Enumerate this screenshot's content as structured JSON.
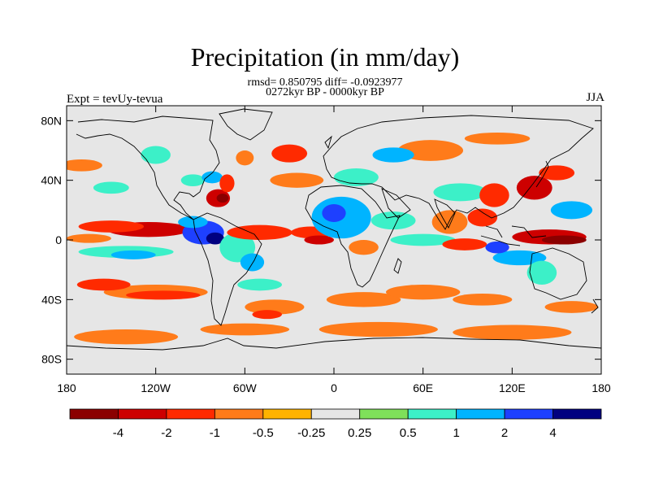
{
  "title": "Precipitation (in mm/day)",
  "stats_line": "rmsd= 0.850795 diff= -0.0923977",
  "period_line": "0272kyr BP - 0000kyr BP",
  "experiment_label": "Expt = tevUy-tevua",
  "season_label": "JJA",
  "chart_data": {
    "type": "heatmap",
    "title": "Precipitation (in mm/day)",
    "x_axis": {
      "range": [
        -180,
        180
      ],
      "ticks": [
        -180,
        -120,
        -60,
        0,
        60,
        120,
        180
      ],
      "tick_labels": [
        "180",
        "120W",
        "60W",
        "0",
        "60E",
        "120E",
        "180"
      ]
    },
    "y_axis": {
      "range": [
        -90,
        90
      ],
      "ticks": [
        80,
        40,
        0,
        -40,
        -80
      ],
      "tick_labels": [
        "80N",
        "40N",
        "0",
        "40S",
        "80S"
      ]
    },
    "colorbar": {
      "levels": [
        -4,
        -2,
        -1,
        -0.5,
        -0.25,
        0.25,
        0.5,
        1,
        2,
        4
      ],
      "level_labels": [
        "-4",
        "-2",
        "-1",
        "-0.5",
        "-0.25",
        "0.25",
        "0.5",
        "1",
        "2",
        "4"
      ],
      "colors": [
        "#8b0000",
        "#cd0000",
        "#ff2a00",
        "#ff7b1a",
        "#ffb300",
        "#e6e6e6",
        "#7fe05a",
        "#3cf0c8",
        "#00b4ff",
        "#1e40ff",
        "#000080"
      ]
    },
    "regions": [
      {
        "lon": -125,
        "lat": 7,
        "rx": 28,
        "ry": 5,
        "value": -3
      },
      {
        "lon": -150,
        "lat": 9,
        "rx": 22,
        "ry": 4,
        "value": -1.5
      },
      {
        "lon": -165,
        "lat": 1,
        "rx": 15,
        "ry": 3,
        "value": -0.7
      },
      {
        "lon": -140,
        "lat": -8,
        "rx": 32,
        "ry": 4,
        "value": 0.7
      },
      {
        "lon": -135,
        "lat": -10,
        "rx": 15,
        "ry": 3,
        "value": 1.5
      },
      {
        "lon": -88,
        "lat": 5,
        "rx": 14,
        "ry": 8,
        "value": 3
      },
      {
        "lon": -80,
        "lat": 1,
        "rx": 6,
        "ry": 4,
        "value": 5
      },
      {
        "lon": -95,
        "lat": 12,
        "rx": 10,
        "ry": 4,
        "value": 1.5
      },
      {
        "lon": -65,
        "lat": -5,
        "rx": 12,
        "ry": 10,
        "value": 0.7
      },
      {
        "lon": -55,
        "lat": -15,
        "rx": 8,
        "ry": 6,
        "value": 1.2
      },
      {
        "lon": -78,
        "lat": 28,
        "rx": 8,
        "ry": 6,
        "value": -2.5
      },
      {
        "lon": -75,
        "lat": 28,
        "rx": 4,
        "ry": 3,
        "value": -4.5
      },
      {
        "lon": -95,
        "lat": 40,
        "rx": 8,
        "ry": 4,
        "value": 0.7
      },
      {
        "lon": -82,
        "lat": 42,
        "rx": 7,
        "ry": 4,
        "value": 1.5
      },
      {
        "lon": -72,
        "lat": 38,
        "rx": 5,
        "ry": 6,
        "value": -1.5
      },
      {
        "lon": -120,
        "lat": 57,
        "rx": 10,
        "ry": 6,
        "value": 0.7
      },
      {
        "lon": -60,
        "lat": 55,
        "rx": 6,
        "ry": 5,
        "value": -0.7
      },
      {
        "lon": -30,
        "lat": 58,
        "rx": 12,
        "ry": 6,
        "value": -1.5
      },
      {
        "lon": -25,
        "lat": 40,
        "rx": 18,
        "ry": 5,
        "value": -0.7
      },
      {
        "lon": -50,
        "lat": 5,
        "rx": 22,
        "ry": 5,
        "value": -1.5
      },
      {
        "lon": -15,
        "lat": 5,
        "rx": 14,
        "ry": 4,
        "value": -1.5
      },
      {
        "lon": 5,
        "lat": 15,
        "rx": 20,
        "ry": 14,
        "value": 1.5
      },
      {
        "lon": 0,
        "lat": 18,
        "rx": 8,
        "ry": 6,
        "value": 3
      },
      {
        "lon": 40,
        "lat": 13,
        "rx": 15,
        "ry": 6,
        "value": 0.7
      },
      {
        "lon": -10,
        "lat": 0,
        "rx": 10,
        "ry": 3,
        "value": -3
      },
      {
        "lon": 20,
        "lat": -5,
        "rx": 10,
        "ry": 5,
        "value": -0.7
      },
      {
        "lon": 15,
        "lat": 42,
        "rx": 15,
        "ry": 6,
        "value": 0.7
      },
      {
        "lon": 65,
        "lat": 60,
        "rx": 22,
        "ry": 7,
        "value": -0.7
      },
      {
        "lon": 40,
        "lat": 57,
        "rx": 14,
        "ry": 5,
        "value": 1.5
      },
      {
        "lon": 85,
        "lat": 32,
        "rx": 18,
        "ry": 6,
        "value": 0.7
      },
      {
        "lon": 108,
        "lat": 30,
        "rx": 10,
        "ry": 8,
        "value": -1.5
      },
      {
        "lon": 135,
        "lat": 35,
        "rx": 12,
        "ry": 8,
        "value": -2.5
      },
      {
        "lon": 150,
        "lat": 45,
        "rx": 12,
        "ry": 5,
        "value": -1.5
      },
      {
        "lon": 110,
        "lat": 68,
        "rx": 22,
        "ry": 4,
        "value": -0.7
      },
      {
        "lon": 78,
        "lat": 12,
        "rx": 12,
        "ry": 8,
        "value": -0.7
      },
      {
        "lon": 100,
        "lat": 15,
        "rx": 10,
        "ry": 6,
        "value": -1.5
      },
      {
        "lon": 60,
        "lat": 0,
        "rx": 22,
        "ry": 4,
        "value": 0.7
      },
      {
        "lon": 88,
        "lat": -3,
        "rx": 15,
        "ry": 4,
        "value": -1.5
      },
      {
        "lon": 145,
        "lat": 2,
        "rx": 25,
        "ry": 5,
        "value": -2.5
      },
      {
        "lon": 155,
        "lat": 0,
        "rx": 15,
        "ry": 3,
        "value": -4.5
      },
      {
        "lon": 125,
        "lat": -12,
        "rx": 18,
        "ry": 5,
        "value": 1.5
      },
      {
        "lon": 110,
        "lat": -5,
        "rx": 8,
        "ry": 4,
        "value": 3
      },
      {
        "lon": 160,
        "lat": 20,
        "rx": 14,
        "ry": 6,
        "value": 1.2
      },
      {
        "lon": 140,
        "lat": -22,
        "rx": 10,
        "ry": 8,
        "value": 0.7
      },
      {
        "lon": -120,
        "lat": -35,
        "rx": 35,
        "ry": 5,
        "value": -0.7
      },
      {
        "lon": -155,
        "lat": -30,
        "rx": 18,
        "ry": 4,
        "value": -1.5
      },
      {
        "lon": -115,
        "lat": -37,
        "rx": 25,
        "ry": 3,
        "value": -1.5
      },
      {
        "lon": -50,
        "lat": -30,
        "rx": 15,
        "ry": 4,
        "value": 0.7
      },
      {
        "lon": -40,
        "lat": -45,
        "rx": 20,
        "ry": 5,
        "value": -0.7
      },
      {
        "lon": -45,
        "lat": -50,
        "rx": 10,
        "ry": 3,
        "value": -1.5
      },
      {
        "lon": 20,
        "lat": -40,
        "rx": 25,
        "ry": 5,
        "value": -0.7
      },
      {
        "lon": 60,
        "lat": -35,
        "rx": 25,
        "ry": 5,
        "value": -0.7
      },
      {
        "lon": 100,
        "lat": -40,
        "rx": 20,
        "ry": 4,
        "value": -0.7
      },
      {
        "lon": 160,
        "lat": -45,
        "rx": 18,
        "ry": 4,
        "value": -0.7
      },
      {
        "lon": -140,
        "lat": -65,
        "rx": 35,
        "ry": 5,
        "value": -0.7
      },
      {
        "lon": -60,
        "lat": -60,
        "rx": 30,
        "ry": 4,
        "value": -0.7
      },
      {
        "lon": 30,
        "lat": -60,
        "rx": 40,
        "ry": 5,
        "value": -0.7
      },
      {
        "lon": 120,
        "lat": -62,
        "rx": 40,
        "ry": 5,
        "value": -0.7
      },
      {
        "lon": -170,
        "lat": 50,
        "rx": 14,
        "ry": 4,
        "value": -0.7
      },
      {
        "lon": -150,
        "lat": 35,
        "rx": 12,
        "ry": 4,
        "value": 0.7
      }
    ]
  }
}
